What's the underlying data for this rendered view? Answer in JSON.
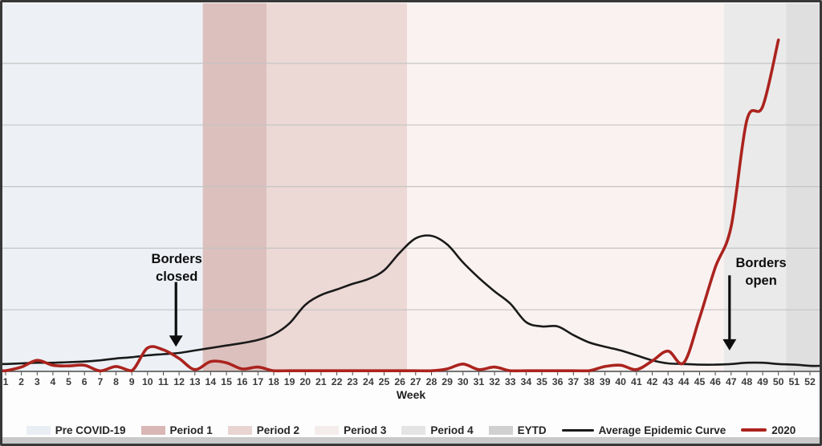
{
  "figure": {
    "background": "#fdfdfd",
    "border_color": "#383838",
    "bottom_strip_color": "#c9c9c9",
    "axis_color": "#4a4a4a",
    "gridline_color": "#c4c4c4",
    "tick_label_color": "#3b3b3b"
  },
  "chart_data": {
    "type": "line",
    "title": "",
    "xlabel": "Week",
    "ylabel": "",
    "grid": "horizontal",
    "legend_position": "bottom",
    "x_ticks": [
      1,
      2,
      3,
      4,
      5,
      6,
      7,
      8,
      9,
      10,
      11,
      12,
      13,
      14,
      15,
      16,
      17,
      18,
      19,
      20,
      21,
      22,
      23,
      24,
      25,
      26,
      27,
      28,
      29,
      30,
      31,
      32,
      33,
      34,
      35,
      36,
      37,
      38,
      39,
      40,
      41,
      42,
      43,
      44,
      45,
      46,
      47,
      48,
      49,
      50,
      51,
      52
    ],
    "y_axis": {
      "visible_labels": false,
      "range": [
        0,
        600
      ],
      "gridline_values": [
        100,
        200,
        300,
        400,
        500
      ],
      "note": "y axis has no visible tick labels; values are relative units where one gridline interval = 100"
    },
    "bands": [
      {
        "label": "Pre COVID-19",
        "start_week": 0.75,
        "end_week": 13.5,
        "color": "#edf1f6"
      },
      {
        "label": "Period 1",
        "start_week": 13.5,
        "end_week": 17.55,
        "color": "#dcc0bd"
      },
      {
        "label": "Period 2",
        "start_week": 17.55,
        "end_week": 26.45,
        "color": "#ecd8d5"
      },
      {
        "label": "Period 3",
        "start_week": 26.45,
        "end_week": 46.55,
        "color": "#faf2f1"
      },
      {
        "label": "Period 4",
        "start_week": 46.55,
        "end_week": 50.5,
        "color": "#eaeaea"
      },
      {
        "label": "EYTD",
        "start_week": 50.5,
        "end_week": 52.6,
        "color": "#dfdfdf"
      }
    ],
    "series": [
      {
        "name": "Average Epidemic Curve",
        "color": "#1a1a1a",
        "width": 2.6,
        "values": [
          12,
          13,
          14,
          14,
          15,
          16,
          18,
          21,
          23,
          26,
          28,
          30,
          34,
          38,
          42,
          46,
          51,
          60,
          78,
          108,
          124,
          133,
          142,
          150,
          164,
          193,
          216,
          220,
          206,
          177,
          152,
          130,
          110,
          80,
          73,
          73,
          59,
          47,
          40,
          34,
          26,
          18,
          13,
          12,
          11,
          11,
          12,
          14,
          14,
          12,
          11,
          9
        ]
      },
      {
        "name": "2020",
        "color": "#ab231e",
        "width": 3.6,
        "values": [
          1,
          7,
          18,
          10,
          9,
          10,
          0,
          8,
          1,
          38,
          35,
          21,
          3,
          16,
          14,
          4,
          7,
          1,
          1,
          1,
          1,
          1,
          1,
          1,
          1,
          1,
          1,
          1,
          4,
          12,
          3,
          7,
          1,
          1,
          1,
          1,
          1,
          1,
          8,
          10,
          3,
          17,
          33,
          14,
          87,
          169,
          235,
          408,
          430,
          538,
          null,
          null
        ]
      }
    ],
    "annotations": [
      {
        "id": "borders-closed",
        "text_lines": [
          "Borders",
          "closed"
        ],
        "text_week": 11.85,
        "text_value": 176,
        "arrow_week": 11.8,
        "arrow_from_value": 145,
        "arrow_to_value": 40
      },
      {
        "id": "borders-open",
        "text_lines": [
          "Borders",
          "open"
        ],
        "text_week": 48.9,
        "text_value": 169,
        "arrow_week": 46.9,
        "arrow_from_value": 156,
        "arrow_to_value": 34
      }
    ]
  },
  "legend": {
    "items": [
      {
        "label": "Pre COVID-19",
        "type": "band",
        "swatch": "#e9eef4"
      },
      {
        "label": "Period 1",
        "type": "band",
        "swatch": "#d8b7b4"
      },
      {
        "label": "Period 2",
        "type": "band",
        "swatch": "#e8d4d1"
      },
      {
        "label": "Period 3",
        "type": "band",
        "swatch": "#f5ecec"
      },
      {
        "label": "Period 4",
        "type": "band",
        "swatch": "#e4e4e4"
      },
      {
        "label": "EYTD",
        "type": "band",
        "swatch": "#d0d0d0"
      },
      {
        "label": "Average Epidemic Curve",
        "type": "line",
        "swatch": "#1a1a1a",
        "line_width": 40,
        "line_height": 3
      },
      {
        "label": "2020",
        "type": "line",
        "swatch": "#ab231e",
        "line_width": 32,
        "line_height": 4
      }
    ]
  }
}
